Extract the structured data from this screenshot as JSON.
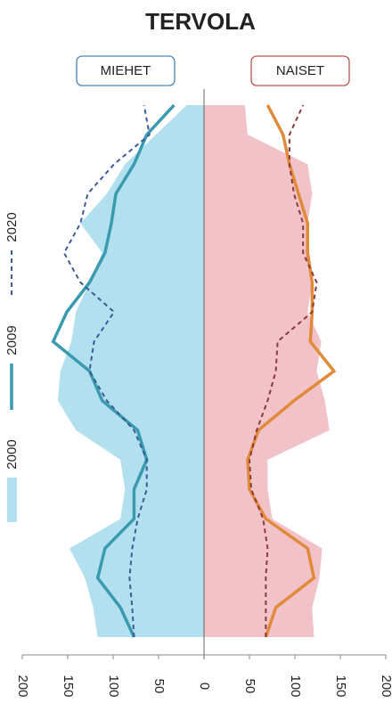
{
  "title": "TERVOLA",
  "chart_data": [
    {
      "type": "pyramid",
      "title": "MIEHET",
      "color": "#4a86b8",
      "categories": [
        null,
        null,
        null,
        null,
        null,
        null,
        null,
        null,
        null,
        null,
        null,
        null,
        null,
        null,
        null,
        null,
        null,
        null,
        null
      ],
      "xlim": [
        0,
        200
      ],
      "xticks": [
        200,
        150,
        100,
        50
      ],
      "series": [
        {
          "name": "2000",
          "style": "area",
          "color": "#b3e0ee",
          "values": [
            117,
            122,
            131,
            148,
            92,
            87,
            92,
            141,
            161,
            158,
            146,
            141,
            126,
            112,
            136,
            107,
            87,
            53,
            19
          ]
        },
        {
          "name": "2009",
          "style": "solid",
          "color": "#3a9bb0",
          "values": [
            77,
            92,
            117,
            109,
            77,
            77,
            63,
            73,
            112,
            126,
            166,
            151,
            126,
            109,
            102,
            97,
            77,
            63,
            33
          ]
        },
        {
          "name": "2020",
          "style": "dashed",
          "color": "#3d5a99",
          "values": [
            77,
            79,
            82,
            79,
            73,
            63,
            63,
            77,
            107,
            126,
            121,
            99,
            136,
            154,
            136,
            128,
            99,
            60,
            66
          ]
        }
      ]
    },
    {
      "type": "pyramid",
      "title": "NAISET",
      "color": "#c0504d",
      "categories": [
        null,
        null,
        null,
        null,
        null,
        null,
        null,
        null,
        null,
        null,
        null,
        null,
        null,
        null,
        null,
        null,
        null,
        null,
        null
      ],
      "xlim": [
        0,
        200
      ],
      "xticks": [
        0,
        50,
        100,
        150,
        200
      ],
      "series": [
        {
          "name": "2000",
          "style": "area",
          "color": "#f2c2c9",
          "values": [
            121,
            119,
            127,
            130,
            75,
            70,
            70,
            138,
            133,
            124,
            129,
            114,
            119,
            114,
            114,
            119,
            114,
            48,
            45
          ]
        },
        {
          "name": "2009",
          "style": "solid",
          "color": "#e08a3a",
          "values": [
            68,
            79,
            121,
            114,
            68,
            50,
            48,
            60,
            99,
            143,
            117,
            119,
            119,
            114,
            114,
            104,
            94,
            87,
            70
          ]
        },
        {
          "name": "2020",
          "style": "dashed",
          "color": "#8b3a3a",
          "values": [
            68,
            68,
            68,
            70,
            65,
            52,
            50,
            58,
            70,
            79,
            81,
            119,
            124,
            109,
            109,
            99,
            94,
            94,
            109
          ]
        }
      ]
    }
  ]
}
